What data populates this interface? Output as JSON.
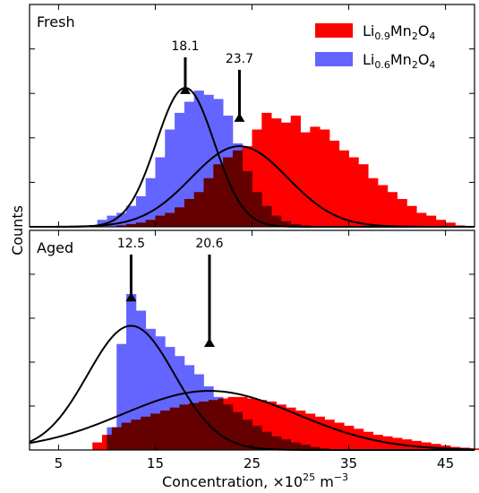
{
  "chart_data": {
    "type": "histogram",
    "xlabel": "Concentration, ×10",
    "xlabel_exp": "25",
    "xlabel_unit": " m",
    "xlabel_unit_exp": "−3",
    "ylabel": "Counts",
    "xlim": [
      2,
      48
    ],
    "xticks": [
      5,
      15,
      25,
      35,
      45
    ],
    "legend": {
      "placement": "top-right",
      "entries": [
        {
          "base": "Li",
          "sub1": "0.9",
          "mid": "Mn",
          "sub2": "2",
          "end": "O",
          "sub3": "4",
          "color": "#ff0000"
        },
        {
          "base": "Li",
          "sub1": "0.6",
          "mid": "Mn",
          "sub2": "2",
          "end": "O",
          "sub3": "4",
          "color": "#6464ff"
        }
      ]
    },
    "panels": [
      {
        "label": "Fresh",
        "ylim": [
          0,
          1.6
        ],
        "annotations": [
          {
            "text": "18.1",
            "x": 18.1,
            "y_top": 1.22,
            "y_tip": 1.02
          },
          {
            "text": "23.7",
            "x": 23.7,
            "y_top": 1.13,
            "y_tip": 0.82
          }
        ],
        "series": [
          {
            "name": "Li0.9Mn2O4",
            "color": "#ff0000",
            "bin_start": 11,
            "bin_width": 1,
            "counts": [
              0.01,
              0.02,
              0.03,
              0.05,
              0.08,
              0.1,
              0.14,
              0.2,
              0.25,
              0.35,
              0.45,
              0.5,
              0.55,
              0.58,
              0.7,
              0.82,
              0.78,
              0.75,
              0.8,
              0.68,
              0.72,
              0.7,
              0.62,
              0.55,
              0.5,
              0.45,
              0.35,
              0.3,
              0.25,
              0.2,
              0.15,
              0.1,
              0.08,
              0.05,
              0.03,
              0.01
            ]
          },
          {
            "name": "Li0.6Mn2O4",
            "color": "#6464ff",
            "bin_start": 9,
            "bin_width": 1,
            "counts": [
              0.05,
              0.08,
              0.1,
              0.15,
              0.22,
              0.35,
              0.5,
              0.7,
              0.82,
              0.9,
              0.98,
              0.95,
              0.92,
              0.8,
              0.6,
              0.4,
              0.25,
              0.15,
              0.08,
              0.04,
              0.02,
              0.01
            ]
          }
        ],
        "fits": [
          {
            "mu": 18.1,
            "sigma": 3.0,
            "amp": 1.0
          },
          {
            "mu": 23.7,
            "sigma": 5.0,
            "amp": 0.58
          }
        ]
      },
      {
        "label": "Aged",
        "ylim": [
          0,
          1.45
        ],
        "annotations": [
          {
            "text": "12.5",
            "x": 12.5,
            "y_top": 1.29,
            "y_tip": 1.04
          },
          {
            "text": "20.6",
            "x": 20.6,
            "y_top": 1.29,
            "y_tip": 0.74
          }
        ],
        "series": [
          {
            "name": "Li0.9Mn2O4",
            "color": "#ff0000",
            "bin_start": 8.5,
            "bin_width": 1,
            "counts": [
              0.05,
              0.1,
              0.15,
              0.18,
              0.2,
              0.22,
              0.24,
              0.26,
              0.28,
              0.3,
              0.31,
              0.32,
              0.33,
              0.34,
              0.35,
              0.35,
              0.34,
              0.33,
              0.32,
              0.3,
              0.28,
              0.26,
              0.24,
              0.22,
              0.2,
              0.18,
              0.16,
              0.14,
              0.12,
              0.1,
              0.09,
              0.08,
              0.07,
              0.06,
              0.05,
              0.04,
              0.03,
              0.02,
              0.015,
              0.01
            ]
          },
          {
            "name": "Li0.6Mn2O4",
            "color": "#6464ff",
            "bin_start": 10,
            "bin_width": 1,
            "counts": [
              0.15,
              0.7,
              1.03,
              0.92,
              0.8,
              0.75,
              0.68,
              0.62,
              0.56,
              0.5,
              0.42,
              0.35,
              0.3,
              0.25,
              0.2,
              0.16,
              0.12,
              0.09,
              0.07,
              0.05,
              0.035,
              0.02,
              0.01
            ]
          }
        ],
        "fits": [
          {
            "mu": 12.5,
            "sigma": 4.5,
            "amp": 0.82
          },
          {
            "mu": 20.6,
            "sigma": 9.0,
            "amp": 0.39
          }
        ]
      }
    ]
  }
}
